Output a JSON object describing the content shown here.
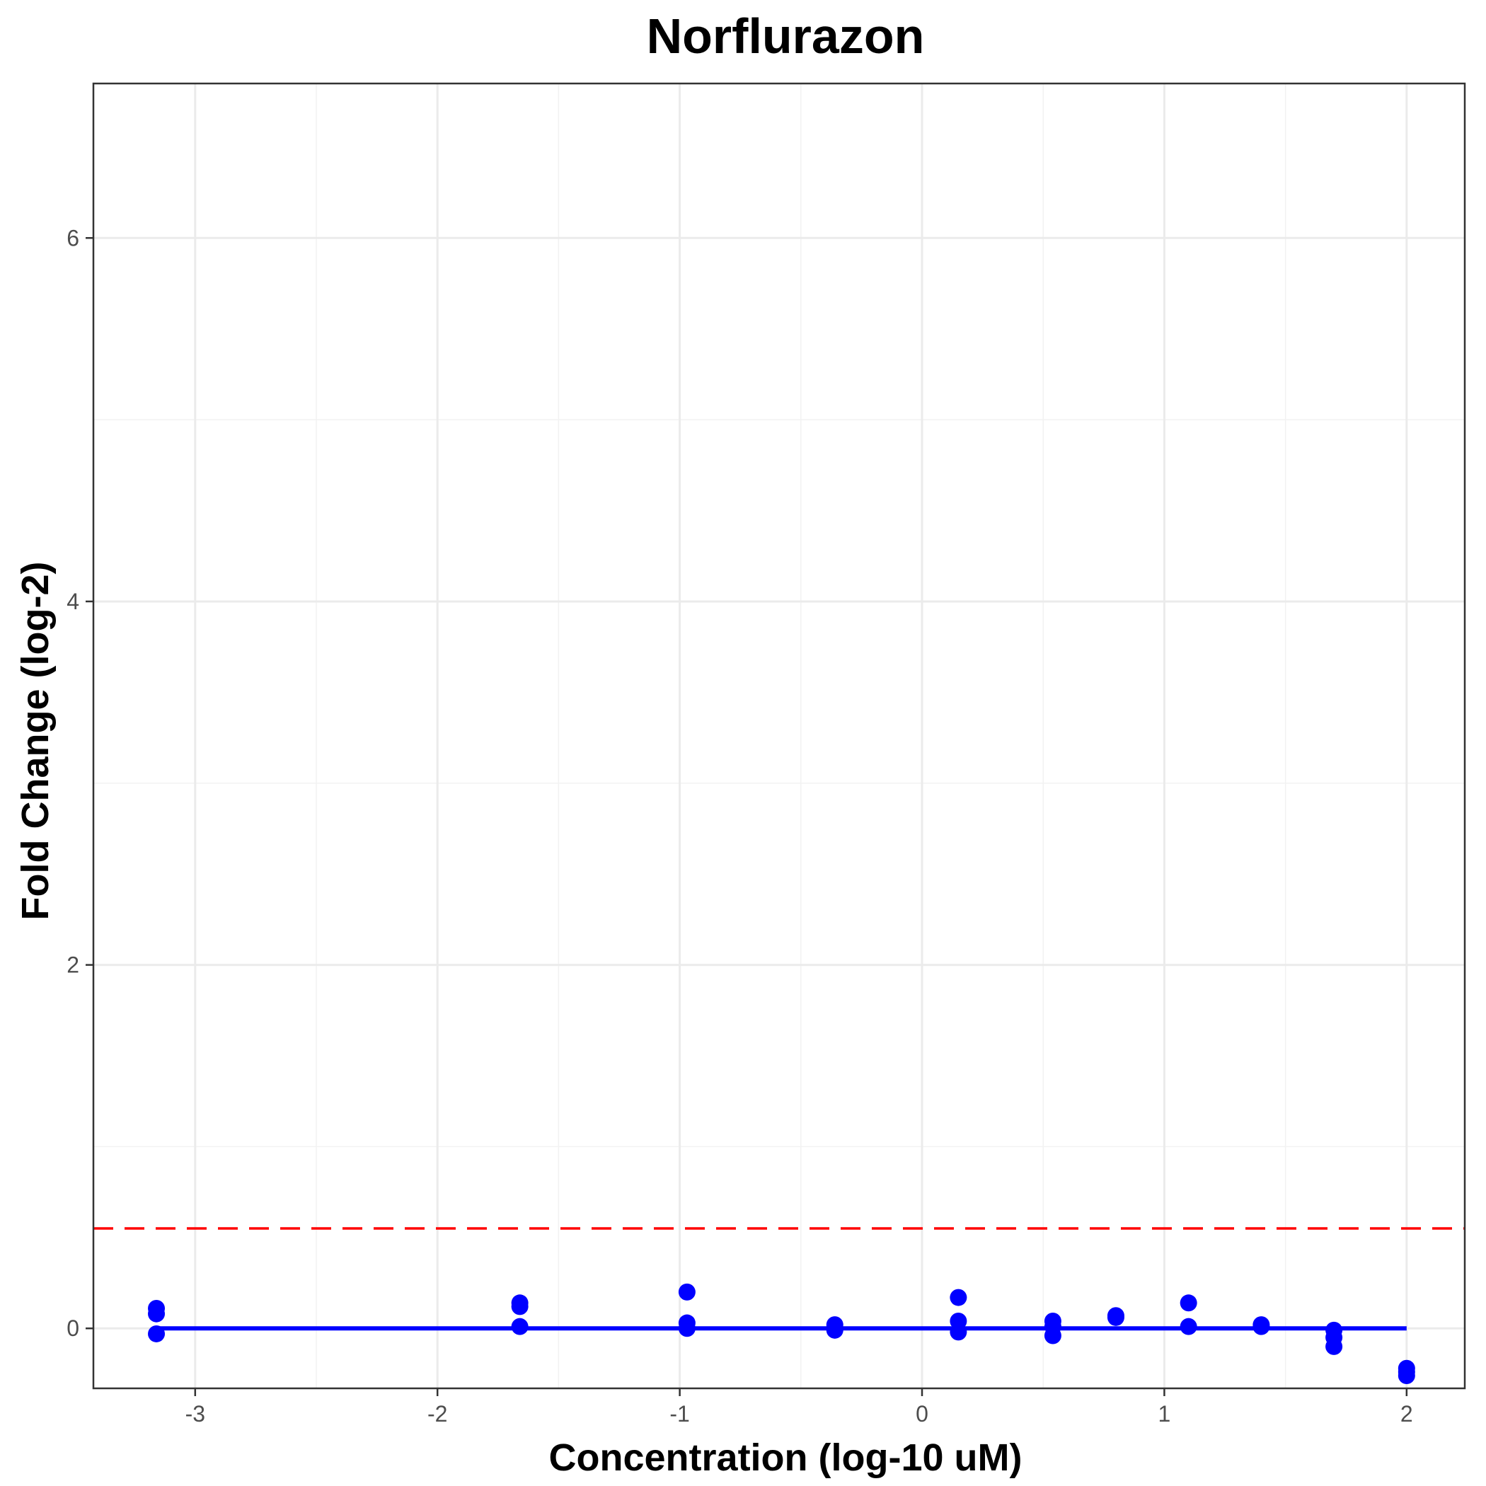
{
  "chart_data": {
    "type": "scatter",
    "title": "Norflurazon",
    "xlabel": "Concentration (log-10 uM)",
    "ylabel": "Fold Change (log-2)",
    "xlim": [
      -3.42,
      2.24
    ],
    "ylim": [
      -0.33,
      6.85
    ],
    "x_ticks": [
      -3,
      -2,
      -1,
      0,
      1,
      2
    ],
    "x_tick_labels": [
      "-3",
      "-2",
      "-1",
      "0",
      "1",
      "2"
    ],
    "y_ticks": [
      0,
      2,
      4,
      6
    ],
    "y_tick_labels": [
      "0",
      "2",
      "4",
      "6"
    ],
    "grid": true,
    "points": [
      {
        "x": -3.16,
        "y": 0.11
      },
      {
        "x": -3.16,
        "y": 0.08
      },
      {
        "x": -3.16,
        "y": -0.03
      },
      {
        "x": -1.66,
        "y": 0.14
      },
      {
        "x": -1.66,
        "y": 0.12
      },
      {
        "x": -1.66,
        "y": 0.01
      },
      {
        "x": -0.97,
        "y": 0.2
      },
      {
        "x": -0.97,
        "y": 0.03
      },
      {
        "x": -0.97,
        "y": 0.0
      },
      {
        "x": -0.36,
        "y": 0.02
      },
      {
        "x": -0.36,
        "y": 0.0
      },
      {
        "x": -0.36,
        "y": -0.01
      },
      {
        "x": 0.15,
        "y": 0.17
      },
      {
        "x": 0.15,
        "y": 0.04
      },
      {
        "x": 0.15,
        "y": -0.02
      },
      {
        "x": 0.54,
        "y": 0.04
      },
      {
        "x": 0.54,
        "y": 0.01
      },
      {
        "x": 0.54,
        "y": -0.04
      },
      {
        "x": 0.8,
        "y": 0.07
      },
      {
        "x": 0.8,
        "y": 0.06
      },
      {
        "x": 1.1,
        "y": 0.14
      },
      {
        "x": 1.1,
        "y": 0.01
      },
      {
        "x": 1.4,
        "y": 0.02
      },
      {
        "x": 1.4,
        "y": 0.01
      },
      {
        "x": 1.7,
        "y": -0.01
      },
      {
        "x": 1.7,
        "y": -0.05
      },
      {
        "x": 1.7,
        "y": -0.1
      },
      {
        "x": 2.0,
        "y": -0.22
      },
      {
        "x": 2.0,
        "y": -0.24
      },
      {
        "x": 2.0,
        "y": -0.26
      }
    ],
    "fit_line": {
      "x": [
        -3.16,
        2.0
      ],
      "y": [
        0,
        0
      ]
    },
    "threshold_line": {
      "y": 0.55
    },
    "colors": {
      "points": "#0000ff",
      "fit": "#0000ff",
      "threshold": "#ff0000",
      "grid_major": "#ebebeb",
      "grid_minor": "#f2f2f2"
    }
  }
}
